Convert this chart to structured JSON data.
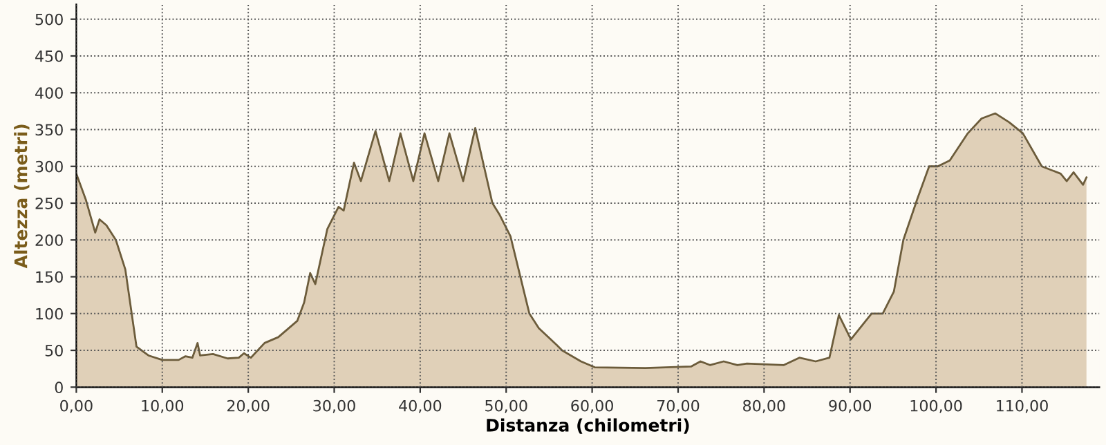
{
  "chart_data": {
    "type": "area",
    "xlabel": "Distanza (chilometri)",
    "ylabel": "Altezza (metri)",
    "xlim": [
      0,
      119
    ],
    "ylim": [
      0,
      520
    ],
    "xticks": [
      {
        "value": 0,
        "label": "0,00"
      },
      {
        "value": 10,
        "label": "10,00"
      },
      {
        "value": 20,
        "label": "20,00"
      },
      {
        "value": 30,
        "label": "30,00"
      },
      {
        "value": 40,
        "label": "40,00"
      },
      {
        "value": 50,
        "label": "50,00"
      },
      {
        "value": 60,
        "label": "60,00"
      },
      {
        "value": 70,
        "label": "70,00"
      },
      {
        "value": 80,
        "label": "80,00"
      },
      {
        "value": 90,
        "label": "90,00"
      },
      {
        "value": 100,
        "label": "100,00"
      },
      {
        "value": 110,
        "label": "110,00"
      }
    ],
    "yticks": [
      0,
      50,
      100,
      150,
      200,
      250,
      300,
      350,
      400,
      450,
      500
    ],
    "grid": true,
    "line_style": "dotted",
    "series": [
      {
        "color": "#e0d0b8",
        "x": [
          0,
          1.1,
          2.2,
          2.7,
          3.5,
          4.6,
          5.7,
          7.0,
          8.4,
          10,
          11.9,
          12.7,
          13.5,
          14.1,
          14.4,
          15.9,
          17.6,
          18.9,
          19.5,
          20.3,
          21.9,
          23.5,
          25.7,
          26.5,
          27.2,
          27.8,
          29.2,
          30.5,
          31.1,
          32.3,
          33.1,
          34.8,
          36.4,
          37.7,
          39.2,
          40.5,
          42.1,
          43.4,
          45.0,
          46.4,
          48.4,
          49.2,
          50.5,
          52.7,
          53.8,
          55.9,
          56.5,
          58.7,
          60.3,
          66.2,
          71.5,
          72.6,
          73.7,
          75.3,
          76.9,
          78.0,
          82.3,
          84.1,
          86.0,
          87.6,
          88.7,
          90.1,
          92.5,
          93.8,
          95.1,
          96.2,
          97.8,
          99.2,
          100.2,
          101.6,
          103.7,
          105.3,
          106.9,
          108.5,
          110.1,
          112.3,
          114.5,
          115.2,
          116.0,
          117.1,
          117.5
        ],
        "values": [
          290,
          255,
          210,
          228,
          220,
          200,
          160,
          55,
          43,
          37,
          37,
          42,
          40,
          60,
          43,
          45,
          39,
          40,
          46,
          40,
          60,
          68,
          90,
          115,
          155,
          140,
          215,
          245,
          240,
          305,
          280,
          348,
          280,
          345,
          280,
          345,
          280,
          345,
          280,
          352,
          250,
          235,
          205,
          100,
          80,
          57,
          50,
          35,
          27,
          26,
          28,
          35,
          30,
          35,
          30,
          32,
          30,
          40,
          35,
          40,
          98,
          65,
          100,
          100,
          130,
          200,
          255,
          300,
          300,
          308,
          345,
          365,
          372,
          360,
          345,
          300,
          290,
          280,
          292,
          275,
          285
        ]
      }
    ]
  }
}
